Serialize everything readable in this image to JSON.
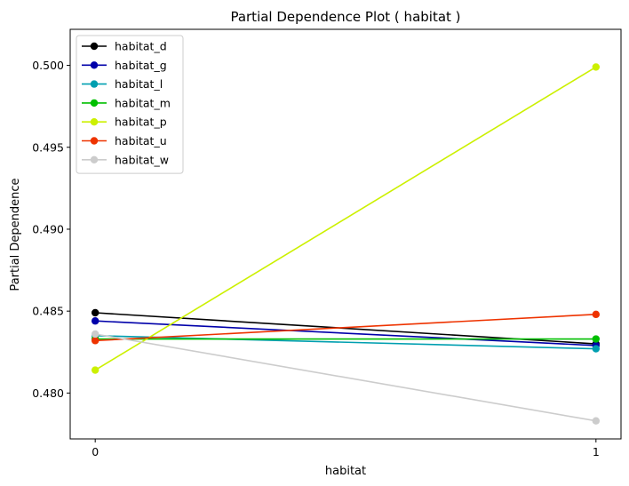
{
  "chart_data": {
    "type": "line",
    "title": "Partial Dependence Plot ( habitat )",
    "xlabel": "habitat",
    "ylabel": "Partial Dependence",
    "x": [
      0,
      1
    ],
    "x_ticks": [
      "0",
      "1"
    ],
    "y_ticks": [
      "0.480",
      "0.485",
      "0.490",
      "0.495",
      "0.500"
    ],
    "y_tick_values": [
      0.48,
      0.485,
      0.49,
      0.495,
      0.5
    ],
    "ylim": [
      0.4772,
      0.5022
    ],
    "xlim": [
      -0.05,
      1.05
    ],
    "grid": false,
    "legend_position": "top-left",
    "series": [
      {
        "name": "habitat_d",
        "color": "#000000",
        "values": [
          0.4849,
          0.483
        ]
      },
      {
        "name": "habitat_g",
        "color": "#0000aa",
        "values": [
          0.4844,
          0.4829
        ]
      },
      {
        "name": "habitat_l",
        "color": "#009fb0",
        "values": [
          0.4835,
          0.4827
        ]
      },
      {
        "name": "habitat_m",
        "color": "#00bf00",
        "values": [
          0.4833,
          0.4833
        ]
      },
      {
        "name": "habitat_p",
        "color": "#ccf000",
        "values": [
          0.4814,
          0.4999
        ]
      },
      {
        "name": "habitat_u",
        "color": "#ee3300",
        "values": [
          0.4832,
          0.4848
        ]
      },
      {
        "name": "habitat_w",
        "color": "#cccccc",
        "values": [
          0.4836,
          0.4783
        ]
      }
    ]
  }
}
